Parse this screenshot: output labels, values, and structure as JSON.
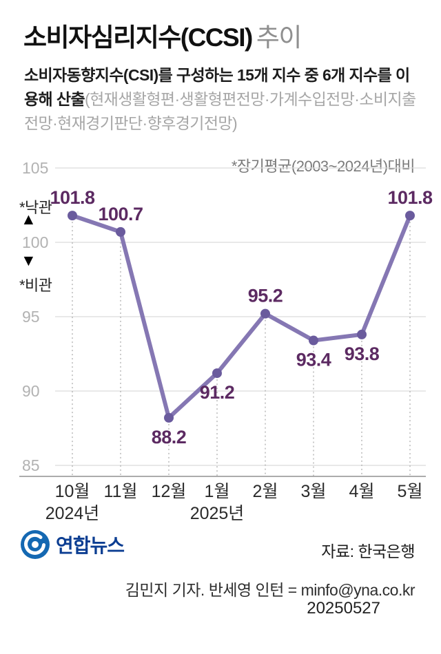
{
  "header": {
    "title": "소비자심리지수(CCSI)",
    "title_suffix": "추이",
    "description_main": "소비자동향지수(CSI)를 구성하는 15개 지수 중 6개 지수를 이용해 산출",
    "description_detail": "(현재생활형편·생활형편전망·가계수입전망·소비지출전망·현재경기판단·향후경기전망)",
    "baseline_note": "*장기평균(2003~2024년)대비"
  },
  "annotations": {
    "optimism": "*낙관",
    "up_arrow": "▲",
    "down_arrow": "▼",
    "pessimism": "*비관"
  },
  "chart_data": {
    "type": "line",
    "title": "소비자심리지수(CCSI) 추이",
    "categories": [
      "10월",
      "11월",
      "12월",
      "1월",
      "2월",
      "3월",
      "4월",
      "5월"
    ],
    "values": [
      101.8,
      100.7,
      88.2,
      91.2,
      95.2,
      93.4,
      93.8,
      101.8
    ],
    "label_positions": [
      "above",
      "above",
      "below",
      "below",
      "above",
      "below",
      "below",
      "above"
    ],
    "year_labels": [
      {
        "index": 0,
        "label": "2024년"
      },
      {
        "index": 3,
        "label": "2025년"
      }
    ],
    "yticks": [
      105,
      100,
      95,
      90,
      85
    ],
    "ylim": [
      83,
      106
    ],
    "grid": true,
    "legend": "none",
    "line_color": "#8577b3",
    "point_color": "#6a5b9d",
    "value_label_color": "#5c2a62",
    "grid_color": "#d9d9d9",
    "axis_color": "#8f8f8f",
    "tick_label_color": "#b2b2b2",
    "x_label_color": "#2b2b2b"
  },
  "footer": {
    "logo_text": "연합뉴스",
    "logo_color": "#1468b2",
    "source": "자료: 한국은행",
    "credit": "김민지 기자. 반세영 인턴 = minfo@yna.co.kr",
    "date": "20250527"
  }
}
